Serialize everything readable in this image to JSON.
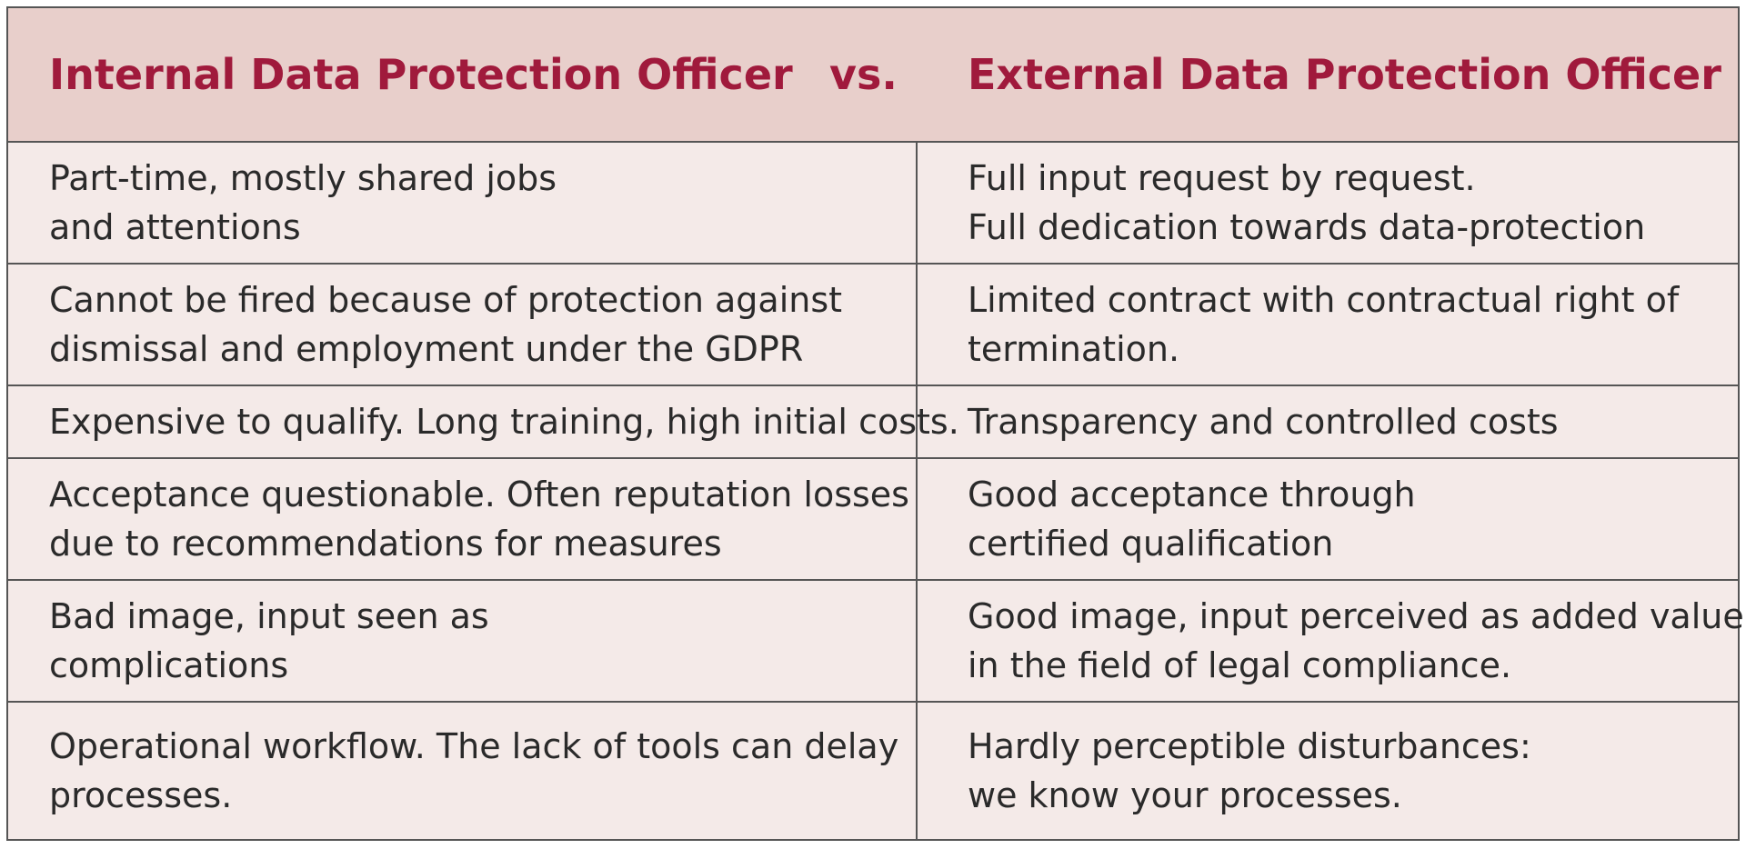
{
  "header": {
    "left_title": "Internal Data Protection Officer",
    "vs": "vs.",
    "right_title": "External Data Protection Officer"
  },
  "rows": [
    {
      "internal": [
        "Part-time, mostly shared jobs",
        "and attentions"
      ],
      "external": [
        "Full input request by request.",
        "Full dedication towards data-protection"
      ]
    },
    {
      "internal": [
        "Cannot be fired because of protection against",
        "dismissal and employment under the GDPR"
      ],
      "external": [
        "Limited contract with contractual right of",
        "termination."
      ]
    },
    {
      "internal": [
        "Expensive to qualify. Long training, high initial costs."
      ],
      "external": [
        "Transparency and controlled costs"
      ]
    },
    {
      "internal": [
        "Acceptance questionable. Often reputation losses",
        "due to recommendations for measures"
      ],
      "external": [
        "Good acceptance through",
        "certified qualification"
      ]
    },
    {
      "internal": [
        "Bad image, input seen as",
        "complications"
      ],
      "external": [
        "Good image, input perceived as added value",
        "in the field of legal compliance."
      ]
    },
    {
      "internal": [
        "Operational workflow. The lack of tools can delay",
        "processes."
      ],
      "external": [
        "Hardly perceptible disturbances:",
        "we know your processes."
      ]
    }
  ]
}
